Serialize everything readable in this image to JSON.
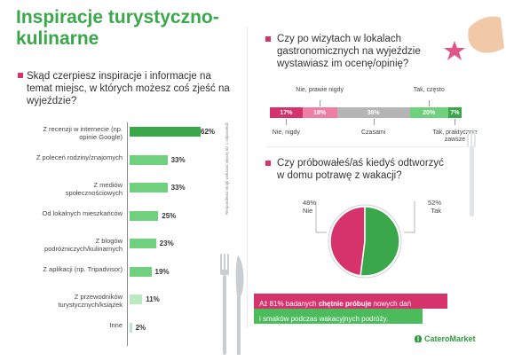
{
  "title": "Inspiracje turystyczno-kulinarne",
  "q1": "Skąd czerpiesz inspiracje i informacje na temat miejsc, w których możesz coś zjeść na wyjeździe?",
  "q2": "Czy po wizytach w lokalach gastronomicznych na wyjeździe wystawiasz im ocenę/opinię?",
  "q3": "Czy próbowałeś/aś kiedyś odtworzyć w domu potrawę z wakacji?",
  "side_note": "Respondenci mogli wskazać więcej niż 1 odpowiedź",
  "note": {
    "prefix": "Aż 81% badanych ",
    "bold": "chętnie próbuje",
    "suffix": " nowych dań",
    "line2": "i smaków podczas wakacyjnych podróży."
  },
  "logo": "CateroMarket",
  "colors": {
    "green": "#3aa84a",
    "green_light": "#6fd07e",
    "green_pale": "#b9eac1",
    "pink": "#d6336c",
    "pink_light": "#ee7fa2",
    "grey": "#b5b5b5"
  },
  "chart_data": [
    {
      "type": "bar",
      "orientation": "horizontal",
      "title": "Skąd czerpiesz inspiracje i informacje na temat miejsc, w których możesz coś zjeść na wyjeździe?",
      "categories": [
        "Z recenzji w internecie (np. opinie Google)",
        "Z poleceń rodziny/znajomych",
        "Z mediów społecznościowych",
        "Od lokalnych mieszkańców",
        "Z blogów podróżniczych/kulinarnych",
        "Z aplikacji (np. Tripadvisor)",
        "Z przewodników turystycznych/książek",
        "Inne"
      ],
      "values": [
        62,
        33,
        33,
        25,
        23,
        19,
        11,
        2
      ],
      "value_labels": [
        "62%",
        "33%",
        "33%",
        "25%",
        "23%",
        "19%",
        "11%",
        "2%"
      ],
      "xlim": [
        0,
        100
      ]
    },
    {
      "type": "bar",
      "orientation": "stacked-horizontal",
      "title": "Czy po wizytach w lokalach gastronomicznych na wyjeździe wystawiasz im ocenę/opinię?",
      "categories": [
        "Nie, nigdy",
        "Nie, prawie nigdy",
        "Czasami",
        "Tak, często",
        "Tak, praktycznie zawsze"
      ],
      "values": [
        17,
        18,
        38,
        20,
        7
      ],
      "value_labels": [
        "17%",
        "18%",
        "38%",
        "20%",
        "7%"
      ]
    },
    {
      "type": "pie",
      "title": "Czy próbowałeś/aś kiedyś odtworzyć w domu potrawę z wakacji?",
      "categories": [
        "Nie",
        "Tak"
      ],
      "values": [
        48,
        52
      ],
      "value_labels": [
        "48%",
        "52%"
      ]
    }
  ]
}
